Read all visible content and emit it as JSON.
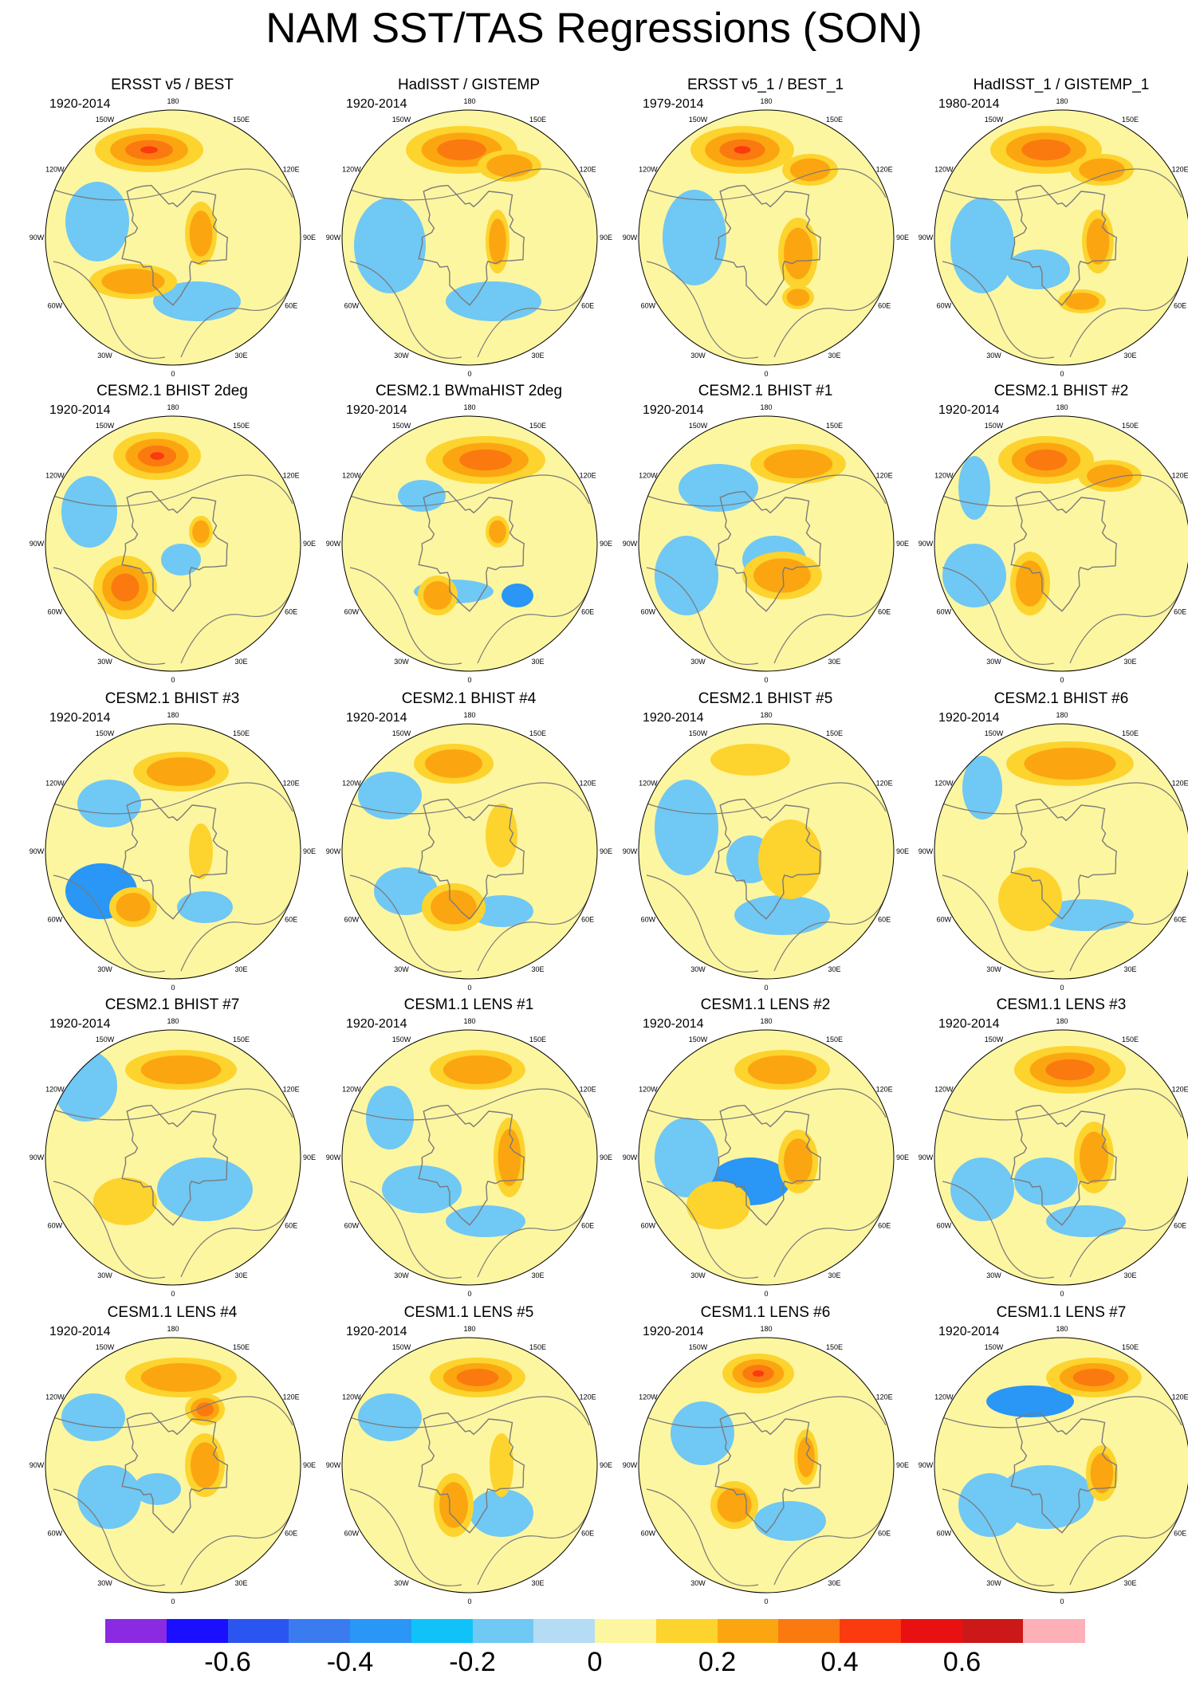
{
  "figure": {
    "title": "NAM SST/TAS Regressions (SON)"
  },
  "panels": [
    {
      "title": "ERSST v5 / BEST",
      "years": "1920-2014",
      "pattern": 0
    },
    {
      "title": "HadISST / GISTEMP",
      "years": "1920-2014",
      "pattern": 1
    },
    {
      "title": "ERSST v5_1 / BEST_1",
      "years": "1979-2014",
      "pattern": 2
    },
    {
      "title": "HadISST_1 / GISTEMP_1",
      "years": "1980-2014",
      "pattern": 3
    },
    {
      "title": "CESM2.1 BHIST 2deg",
      "years": "1920-2014",
      "pattern": 4
    },
    {
      "title": "CESM2.1 BWmaHIST 2deg",
      "years": "1920-2014",
      "pattern": 5
    },
    {
      "title": "CESM2.1 BHIST #1",
      "years": "1920-2014",
      "pattern": 6
    },
    {
      "title": "CESM2.1 BHIST #2",
      "years": "1920-2014",
      "pattern": 7
    },
    {
      "title": "CESM2.1 BHIST #3",
      "years": "1920-2014",
      "pattern": 8
    },
    {
      "title": "CESM2.1 BHIST #4",
      "years": "1920-2014",
      "pattern": 9
    },
    {
      "title": "CESM2.1 BHIST #5",
      "years": "1920-2014",
      "pattern": 10
    },
    {
      "title": "CESM2.1 BHIST #6",
      "years": "1920-2014",
      "pattern": 11
    },
    {
      "title": "CESM2.1 BHIST #7",
      "years": "1920-2014",
      "pattern": 12
    },
    {
      "title": "CESM1.1 LENS #1",
      "years": "1920-2014",
      "pattern": 13
    },
    {
      "title": "CESM1.1 LENS #2",
      "years": "1920-2014",
      "pattern": 14
    },
    {
      "title": "CESM1.1 LENS #3",
      "years": "1920-2014",
      "pattern": 15
    },
    {
      "title": "CESM1.1 LENS #4",
      "years": "1920-2014",
      "pattern": 16
    },
    {
      "title": "CESM1.1 LENS #5",
      "years": "1920-2014",
      "pattern": 17
    },
    {
      "title": "CESM1.1 LENS #6",
      "years": "1920-2014",
      "pattern": 18
    },
    {
      "title": "CESM1.1 LENS #7",
      "years": "1920-2014",
      "pattern": 19
    }
  ],
  "longitude_labels": [
    "180",
    "150E",
    "120E",
    "90E",
    "60E",
    "30E",
    "0",
    "30W",
    "60W",
    "90W",
    "120W",
    "150W"
  ],
  "colorbar": {
    "colors": [
      "#8a2be2",
      "#1a10ff",
      "#2b55f0",
      "#3a7cf0",
      "#2a96f5",
      "#10c2f8",
      "#70c8f4",
      "#b4dcf4",
      "#fdf6a0",
      "#fdd32e",
      "#fba610",
      "#fb7a10",
      "#fb3a10",
      "#e81010",
      "#cc1818",
      "#fdb0b8"
    ],
    "tick_labels": [
      "-0.6",
      "-0.4",
      "-0.2",
      "0",
      "0.2",
      "0.4",
      "0.6"
    ],
    "tick_values": [
      -0.6,
      -0.4,
      -0.2,
      0,
      0.2,
      0.4,
      0.6
    ],
    "min": -0.8,
    "max": 0.8
  }
}
